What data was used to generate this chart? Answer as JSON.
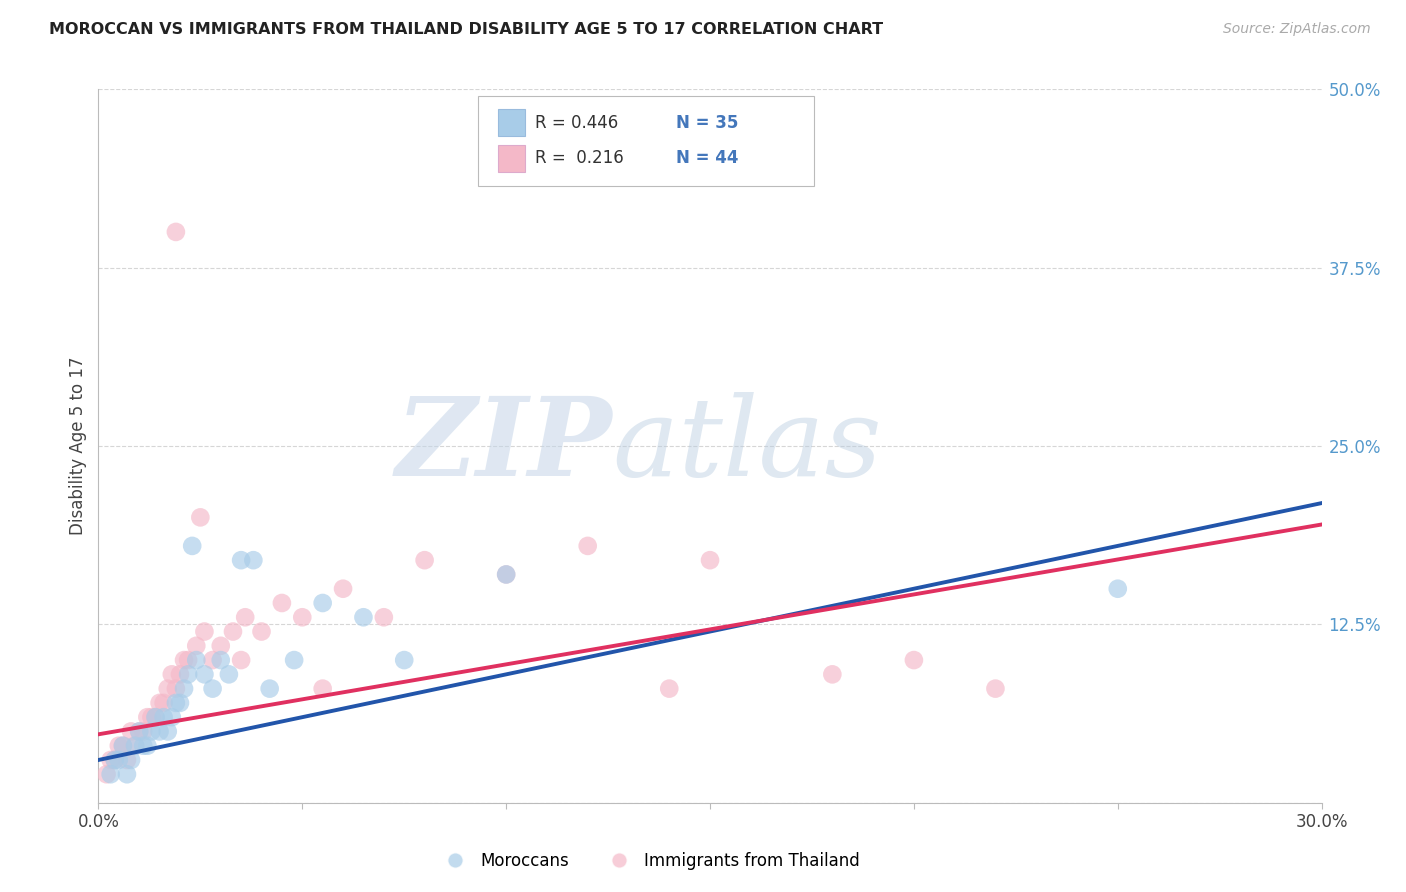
{
  "title": "MOROCCAN VS IMMIGRANTS FROM THAILAND DISABILITY AGE 5 TO 17 CORRELATION CHART",
  "source": "Source: ZipAtlas.com",
  "ylabel": "Disability Age 5 to 17",
  "xlim": [
    0.0,
    0.3
  ],
  "ylim": [
    0.0,
    0.5
  ],
  "xticks": [
    0.0,
    0.05,
    0.1,
    0.15,
    0.2,
    0.25,
    0.3
  ],
  "yticks_right": [
    0.0,
    0.125,
    0.25,
    0.375,
    0.5
  ],
  "blue_R": 0.446,
  "blue_N": 35,
  "pink_R": 0.216,
  "pink_N": 44,
  "blue_color": "#a8cce8",
  "pink_color": "#f4b8c8",
  "blue_line_color": "#2255aa",
  "pink_line_color": "#e03060",
  "legend_label_blue": "Moroccans",
  "legend_label_pink": "Immigrants from Thailand",
  "blue_scatter_x": [
    0.003,
    0.004,
    0.005,
    0.006,
    0.007,
    0.008,
    0.009,
    0.01,
    0.011,
    0.012,
    0.013,
    0.014,
    0.015,
    0.016,
    0.017,
    0.018,
    0.019,
    0.02,
    0.021,
    0.022,
    0.024,
    0.026,
    0.028,
    0.03,
    0.032,
    0.035,
    0.038,
    0.042,
    0.048,
    0.055,
    0.065,
    0.075,
    0.1,
    0.25,
    0.023
  ],
  "blue_scatter_y": [
    0.02,
    0.03,
    0.03,
    0.04,
    0.02,
    0.03,
    0.04,
    0.05,
    0.04,
    0.04,
    0.05,
    0.06,
    0.05,
    0.06,
    0.05,
    0.06,
    0.07,
    0.07,
    0.08,
    0.09,
    0.1,
    0.09,
    0.08,
    0.1,
    0.09,
    0.17,
    0.17,
    0.08,
    0.1,
    0.14,
    0.13,
    0.1,
    0.16,
    0.15,
    0.18
  ],
  "pink_scatter_x": [
    0.002,
    0.003,
    0.004,
    0.005,
    0.006,
    0.007,
    0.008,
    0.009,
    0.01,
    0.011,
    0.012,
    0.013,
    0.014,
    0.015,
    0.016,
    0.017,
    0.018,
    0.019,
    0.02,
    0.021,
    0.022,
    0.024,
    0.026,
    0.028,
    0.03,
    0.033,
    0.036,
    0.04,
    0.045,
    0.05,
    0.06,
    0.07,
    0.08,
    0.1,
    0.12,
    0.15,
    0.18,
    0.2,
    0.22,
    0.14,
    0.055,
    0.025,
    0.035,
    0.019
  ],
  "pink_scatter_y": [
    0.02,
    0.03,
    0.03,
    0.04,
    0.04,
    0.03,
    0.05,
    0.04,
    0.05,
    0.05,
    0.06,
    0.06,
    0.06,
    0.07,
    0.07,
    0.08,
    0.09,
    0.08,
    0.09,
    0.1,
    0.1,
    0.11,
    0.12,
    0.1,
    0.11,
    0.12,
    0.13,
    0.12,
    0.14,
    0.13,
    0.15,
    0.13,
    0.17,
    0.16,
    0.18,
    0.17,
    0.09,
    0.1,
    0.08,
    0.08,
    0.08,
    0.2,
    0.1,
    0.4
  ],
  "blue_line_x0": 0.0,
  "blue_line_y0": 0.03,
  "blue_line_x1": 0.3,
  "blue_line_y1": 0.21,
  "pink_line_x0": 0.0,
  "pink_line_y0": 0.048,
  "pink_line_x1": 0.3,
  "pink_line_y1": 0.195,
  "watermark_zip": "ZIP",
  "watermark_atlas": "atlas",
  "background_color": "#ffffff",
  "grid_color": "#cccccc"
}
